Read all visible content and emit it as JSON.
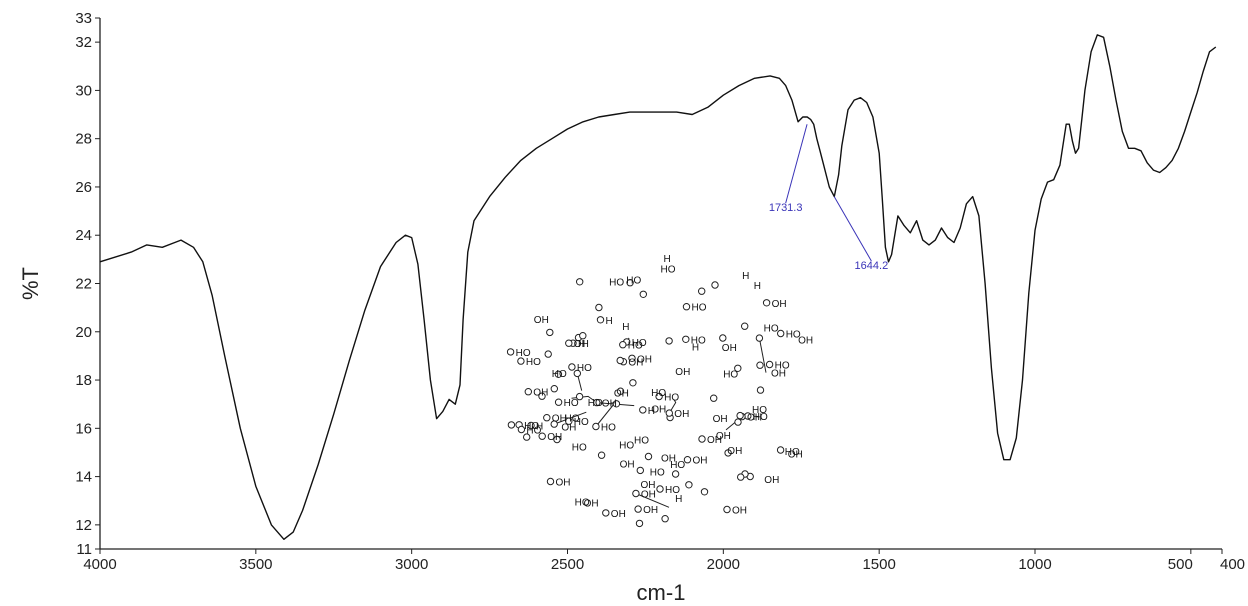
{
  "chart_data": {
    "type": "line",
    "title": "",
    "xlabel": "cm-1",
    "ylabel": "%T",
    "xlim": [
      4000,
      400
    ],
    "ylim": [
      11,
      33
    ],
    "x_ticks": [
      4000,
      3500,
      3000,
      2500,
      2000,
      1500,
      1000,
      500,
      400
    ],
    "x_tick_labels": [
      "4000",
      "3500",
      "3000",
      "2500",
      "2000",
      "1500",
      "1000",
      "500",
      "400"
    ],
    "y_ticks": [
      11,
      12,
      14,
      16,
      18,
      20,
      22,
      24,
      26,
      28,
      30,
      32,
      33
    ],
    "y_tick_labels": [
      "11",
      "12",
      "14",
      "16",
      "18",
      "20",
      "22",
      "24",
      "26",
      "28",
      "30",
      "32",
      "33"
    ],
    "grid": false,
    "legend": "none",
    "line_color": "#111111",
    "annotation_color": "#3a34b8",
    "series": [
      {
        "x": [
          4000,
          3900,
          3850,
          3800,
          3760,
          3740,
          3700,
          3670,
          3640,
          3600,
          3550,
          3500,
          3450,
          3410,
          3380,
          3350,
          3300,
          3250,
          3200,
          3150,
          3100,
          3050,
          3020,
          3000,
          2980,
          2960,
          2940,
          2920,
          2900,
          2880,
          2860,
          2845,
          2835,
          2820,
          2800,
          2750,
          2700,
          2650,
          2600,
          2550,
          2500,
          2450,
          2400,
          2350,
          2300,
          2250,
          2200,
          2150,
          2100,
          2050,
          2000,
          1950,
          1900,
          1850,
          1820,
          1800,
          1780,
          1760,
          1745,
          1731,
          1720,
          1710,
          1700,
          1690,
          1680,
          1660,
          1644,
          1630,
          1620,
          1600,
          1580,
          1560,
          1540,
          1520,
          1500,
          1490,
          1480,
          1470,
          1460,
          1440,
          1420,
          1400,
          1380,
          1360,
          1340,
          1320,
          1300,
          1280,
          1260,
          1240,
          1220,
          1200,
          1180,
          1160,
          1140,
          1120,
          1100,
          1080,
          1060,
          1040,
          1020,
          1000,
          980,
          960,
          940,
          920,
          900,
          890,
          880,
          870,
          860,
          850,
          840,
          820,
          800,
          780,
          760,
          740,
          720,
          700,
          680,
          660,
          640,
          620,
          600,
          580,
          560,
          540,
          520,
          500,
          480,
          460,
          440,
          420
        ],
        "y": [
          22.9,
          23.3,
          23.6,
          23.5,
          23.7,
          23.8,
          23.5,
          22.9,
          21.5,
          19.0,
          16.0,
          13.6,
          12.0,
          11.4,
          11.7,
          12.6,
          14.5,
          16.6,
          18.8,
          20.9,
          22.7,
          23.7,
          24.0,
          23.9,
          22.8,
          20.5,
          18.0,
          16.4,
          16.7,
          17.2,
          17.0,
          17.8,
          20.5,
          23.3,
          24.6,
          25.6,
          26.4,
          27.1,
          27.6,
          28.0,
          28.4,
          28.7,
          28.9,
          29.0,
          29.1,
          29.1,
          29.1,
          29.1,
          29.0,
          29.3,
          29.8,
          30.2,
          30.5,
          30.6,
          30.5,
          30.2,
          29.6,
          28.7,
          28.9,
          28.9,
          28.8,
          28.6,
          28.0,
          27.5,
          27.0,
          26.0,
          25.6,
          26.5,
          27.7,
          29.2,
          29.6,
          29.7,
          29.5,
          28.9,
          27.4,
          25.5,
          23.5,
          22.9,
          23.2,
          24.8,
          24.4,
          24.1,
          24.6,
          23.8,
          23.6,
          23.8,
          24.3,
          23.9,
          23.7,
          24.3,
          25.3,
          25.6,
          24.8,
          22.0,
          18.5,
          15.8,
          14.7,
          14.7,
          15.6,
          18.0,
          21.6,
          24.2,
          25.5,
          26.2,
          26.3,
          26.9,
          28.6,
          28.6,
          27.9,
          27.4,
          27.6,
          28.8,
          30.0,
          31.6,
          32.3,
          32.2,
          31.0,
          29.6,
          28.3,
          27.6,
          27.6,
          27.5,
          27.0,
          26.7,
          26.6,
          26.8,
          27.1,
          27.6,
          28.3,
          29.1,
          29.9,
          30.8,
          31.6,
          31.8
        ]
      }
    ],
    "annotations": [
      {
        "text": "1731.3",
        "x": 1731.3,
        "y": 28.6,
        "label_x": 1800,
        "label_y": 25.0
      },
      {
        "text": "1644.2",
        "x": 1644.2,
        "y": 25.6,
        "label_x": 1525,
        "label_y": 22.6
      }
    ]
  },
  "structure_labels": {
    "oh": "OH",
    "ho": "HO",
    "o": "O",
    "h": "H"
  }
}
